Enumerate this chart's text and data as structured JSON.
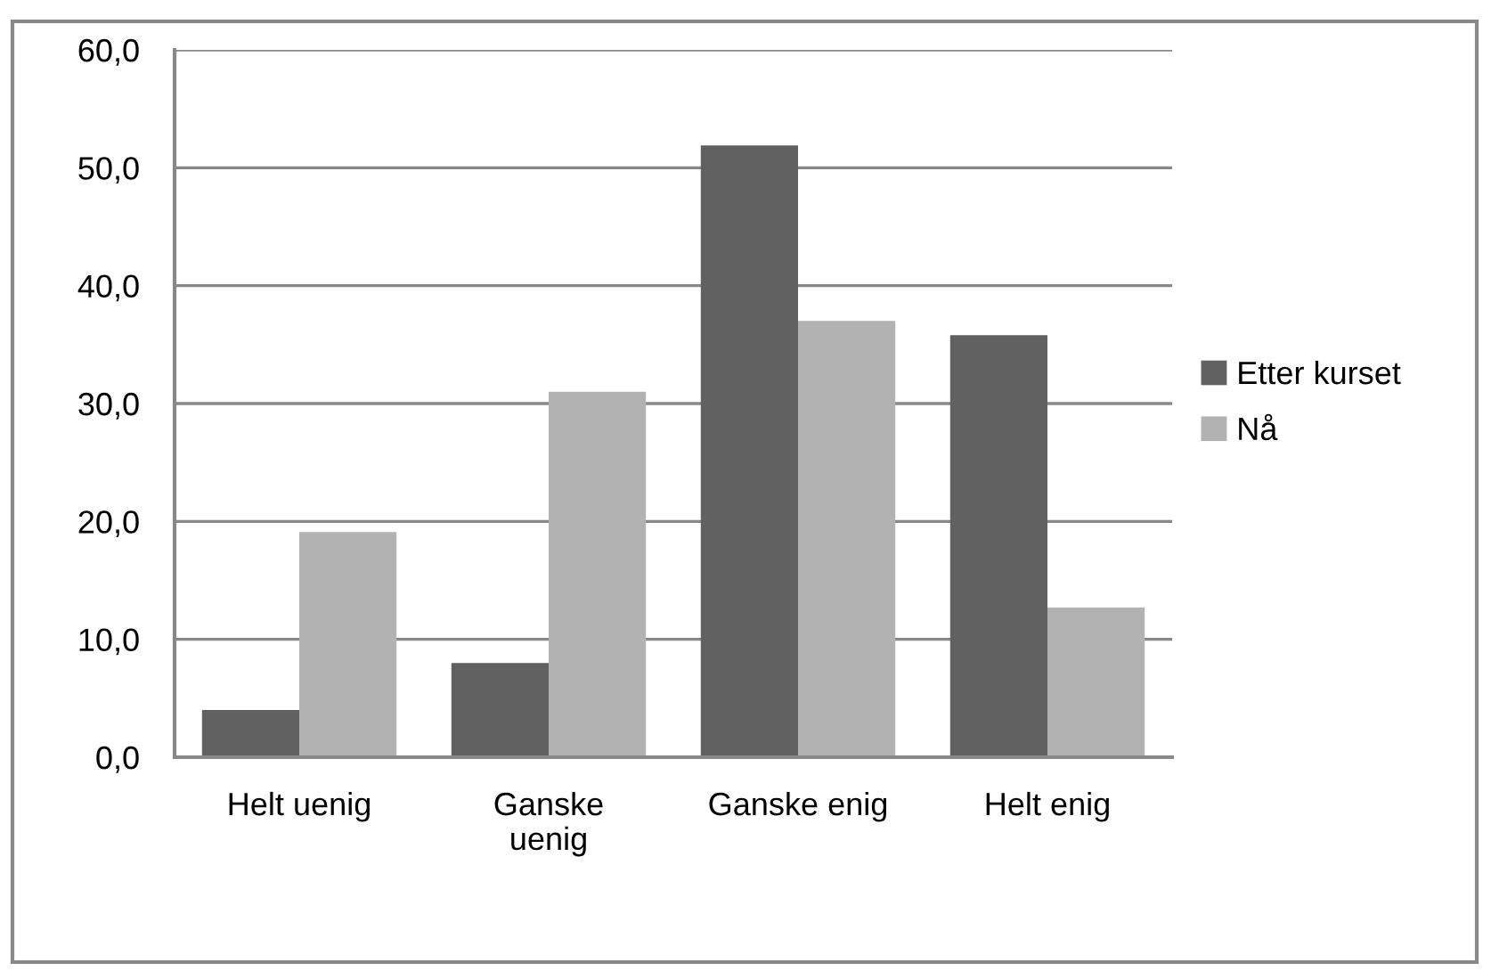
{
  "chart_data": {
    "type": "bar",
    "categories": [
      "Helt uenig",
      "Ganske\nuenig",
      "Ganske enig",
      "Helt enig"
    ],
    "series": [
      {
        "name": "Etter kurset",
        "color": "#616161",
        "values": [
          4.0,
          8.0,
          51.9,
          35.8
        ]
      },
      {
        "name": "Nå",
        "color": "#b2b2b2",
        "values": [
          19.1,
          31.0,
          37.0,
          12.7
        ]
      }
    ],
    "ylim": [
      0,
      60
    ],
    "yticks": [
      {
        "value": 0,
        "label": "0,0"
      },
      {
        "value": 10,
        "label": "10,0"
      },
      {
        "value": 20,
        "label": "20,0"
      },
      {
        "value": 30,
        "label": "30,0"
      },
      {
        "value": 40,
        "label": "40,0"
      },
      {
        "value": 50,
        "label": "50,0"
      },
      {
        "value": 60,
        "label": "60,0"
      }
    ],
    "grid": "y",
    "legend": "right"
  }
}
